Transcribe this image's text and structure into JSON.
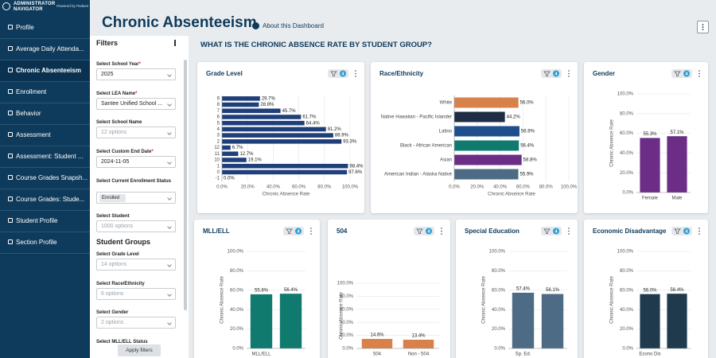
{
  "sidebar": {
    "logo_lines": [
      "ADMINISTRATOR",
      "NAVIGATOR"
    ],
    "powered_by": "Powered by Podium",
    "nav": [
      {
        "label": "Profile"
      },
      {
        "label": "Average Daily Attenda..."
      },
      {
        "label": "Chronic Absenteeism",
        "active": true
      },
      {
        "label": "Enrollment"
      },
      {
        "label": "Behavior"
      },
      {
        "label": "Assessment"
      },
      {
        "label": "Assessment: Student ..."
      },
      {
        "label": "Course Grades Snapsh..."
      },
      {
        "label": "Course Grades: Stude..."
      },
      {
        "label": "Student Profile"
      },
      {
        "label": "Section Profile"
      }
    ]
  },
  "header": {
    "title": "Chronic Absenteeism",
    "about": "About this Dashboard"
  },
  "filters": {
    "title": "Filters",
    "required_mark": "*",
    "fields": [
      {
        "label": "Select School Year",
        "required": true,
        "value": "2025"
      },
      {
        "label": "Select LEA Name",
        "required": true,
        "value": "Santee Unified School ..."
      },
      {
        "label": "Select School Name",
        "value": "12 options",
        "placeholder": true
      },
      {
        "label": "Select Custom End Date",
        "required": true,
        "value": "2024-11-05"
      },
      {
        "label": "Select Current Enrollment Status",
        "value": "Enrolled",
        "chip": true
      },
      {
        "label": "Select Student",
        "value": "1000 options",
        "placeholder": true
      }
    ],
    "groups_title": "Student Groups",
    "group_fields": [
      {
        "label": "Select Grade Level",
        "value": "14 options",
        "placeholder": true
      },
      {
        "label": "Select Race/Ethnicity",
        "value": "6 options",
        "placeholder": true
      },
      {
        "label": "Select Gender",
        "value": "2 options",
        "placeholder": true
      },
      {
        "label": "Select MLL/ELL Status"
      }
    ],
    "apply": "Apply filters"
  },
  "question": "WHAT IS THE CHRONIC ABSENCE RATE BY STUDENT GROUP?",
  "charts": [
    {
      "type": "hbar",
      "title": "Grade Level",
      "filter_count": 4,
      "color": "#1f3f7a",
      "categories": [
        "9",
        "8",
        "7",
        "6",
        "5",
        "4",
        "3",
        "2",
        "12",
        "11",
        "10",
        "1",
        "0",
        "-1"
      ],
      "values": [
        29.7,
        28.8,
        45.7,
        61.7,
        64.4,
        81.2,
        86.9,
        93.3,
        6.7,
        12.7,
        19.1,
        98.4,
        97.6,
        0.0
      ],
      "value_labels": [
        "29.7%",
        "28.8%",
        "45.7%",
        "61.7%",
        "64.4%",
        "81.2%",
        "86.9%",
        "93.3%",
        "6.7%",
        "12.7%",
        "19.1%",
        "98.4%",
        "97.6%",
        "0.0%"
      ],
      "xlim": [
        0,
        100
      ],
      "xticks": [
        {
          "value": 0,
          "label": "0.0%"
        },
        {
          "value": 20,
          "label": "20.0%"
        },
        {
          "value": 40,
          "label": "40.0%"
        },
        {
          "value": 60,
          "label": "60.0%"
        },
        {
          "value": 80,
          "label": "80.0%"
        },
        {
          "value": 100,
          "label": "100.0%"
        }
      ],
      "xlabel": "Chronic Absence Rate",
      "grid": true
    },
    {
      "type": "hbar",
      "title": "Race/Ethnicity",
      "filter_count": 4,
      "colors": [
        "#d9814b",
        "#1e2d44",
        "#1f4e8c",
        "#107a6f",
        "#6b2d85",
        "#4d6b85"
      ],
      "categories": [
        "White",
        "Native Hawaiian - Pacific Islander",
        "Latino",
        "Black - African American",
        "Asian",
        "American Indian - Alaska Native"
      ],
      "values": [
        56.0,
        44.2,
        56.9,
        56.4,
        58.8,
        55.9
      ],
      "value_labels": [
        "56.0%",
        "44.2%",
        "56.9%",
        "56.4%",
        "58.8%",
        "55.9%"
      ],
      "xlim": [
        0,
        100
      ],
      "xticks": [
        {
          "value": 0,
          "label": "0.0%"
        },
        {
          "value": 20,
          "label": "20.0%"
        },
        {
          "value": 40,
          "label": "40.0%"
        },
        {
          "value": 60,
          "label": "60.0%"
        },
        {
          "value": 80,
          "label": "80.0%"
        },
        {
          "value": 100,
          "label": "100.0%"
        }
      ],
      "xlabel": "Chronic Absence Rate",
      "grid": true
    },
    {
      "type": "bar",
      "title": "Gender",
      "filter_count": 4,
      "color": "#6b2d85",
      "categories": [
        "Female",
        "Male"
      ],
      "values": [
        55.3,
        57.1
      ],
      "value_labels": [
        "55.3%",
        "57.1%"
      ],
      "ylim": [
        0,
        100
      ],
      "yticks": [
        {
          "value": 0,
          "label": "0.0%"
        },
        {
          "value": 20,
          "label": "20.0%"
        },
        {
          "value": 40,
          "label": "40.0%"
        },
        {
          "value": 60,
          "label": "60.0%"
        },
        {
          "value": 80,
          "label": "80.0%"
        },
        {
          "value": 100,
          "label": "100.0%"
        }
      ],
      "ylabel": "Chronic Absence Rate",
      "grid": true
    },
    {
      "type": "bar",
      "title": "MLL/ELL",
      "filter_count": 4,
      "color": "#107a6f",
      "categories": [
        "MLL/ELL",
        null
      ],
      "values": [
        55.8,
        56.4
      ],
      "value_labels": [
        "55.8%",
        "56.4%"
      ],
      "ylim": [
        0,
        100
      ],
      "yticks": [
        {
          "value": 0,
          "label": "0.0%"
        },
        {
          "value": 20,
          "label": "20.0%"
        },
        {
          "value": 40,
          "label": "40.0%"
        },
        {
          "value": 60,
          "label": "60.0%"
        },
        {
          "value": 80,
          "label": "80.0%"
        },
        {
          "value": 100,
          "label": "100.0%"
        }
      ],
      "ylabel": "Chronic Absence Rate",
      "grid": true
    },
    {
      "type": "bar",
      "title": "504",
      "filter_count": 4,
      "color": "#d9814b",
      "categories": [
        "504",
        "Non - 504"
      ],
      "values": [
        14.6,
        13.4
      ],
      "value_labels": [
        "14.6%",
        "13.4%"
      ],
      "ylim": [
        0,
        100
      ],
      "yticks": [
        {
          "value": 0,
          "label": "0.0%"
        },
        {
          "value": 20,
          "label": "20.0%"
        },
        {
          "value": 40,
          "label": "40.0%"
        },
        {
          "value": 60,
          "label": "60.0%"
        },
        {
          "value": 80,
          "label": "80.0%"
        },
        {
          "value": 100,
          "label": "100.0%"
        }
      ],
      "ylabel": "Chronic Absence Rate",
      "grid": true
    },
    {
      "type": "bar",
      "title": "Special Education",
      "filter_count": 4,
      "color": "#4d6b85",
      "categories": [
        "Sp. Ed.",
        null
      ],
      "values": [
        57.4,
        56.1
      ],
      "value_labels": [
        "57.4%",
        "56.1%"
      ],
      "ylim": [
        0,
        100
      ],
      "yticks": [
        {
          "value": 0,
          "label": "0.0%"
        },
        {
          "value": 20,
          "label": "20.0%"
        },
        {
          "value": 40,
          "label": "40.0%"
        },
        {
          "value": 60,
          "label": "60.0%"
        },
        {
          "value": 80,
          "label": "80.0%"
        },
        {
          "value": 100,
          "label": "100.0%"
        }
      ],
      "ylabel": "Chronic Absence Rate",
      "grid": true
    },
    {
      "type": "bar",
      "title": "Economic Disadvantage",
      "filter_count": 4,
      "color": "#1f3a4d",
      "categories": [
        "Econo Dis",
        null
      ],
      "values": [
        56.0,
        56.4
      ],
      "value_labels": [
        "56.0%",
        "56.4%"
      ],
      "ylim": [
        0,
        100
      ],
      "yticks": [
        {
          "value": 0,
          "label": "0.0%"
        },
        {
          "value": 20,
          "label": "20.0%"
        },
        {
          "value": 40,
          "label": "40.0%"
        },
        {
          "value": 60,
          "label": "60.0%"
        },
        {
          "value": 80,
          "label": "80.0%"
        },
        {
          "value": 100,
          "label": "100.0%"
        }
      ],
      "ylabel": "Chronic Absence Rate",
      "grid": true
    }
  ]
}
